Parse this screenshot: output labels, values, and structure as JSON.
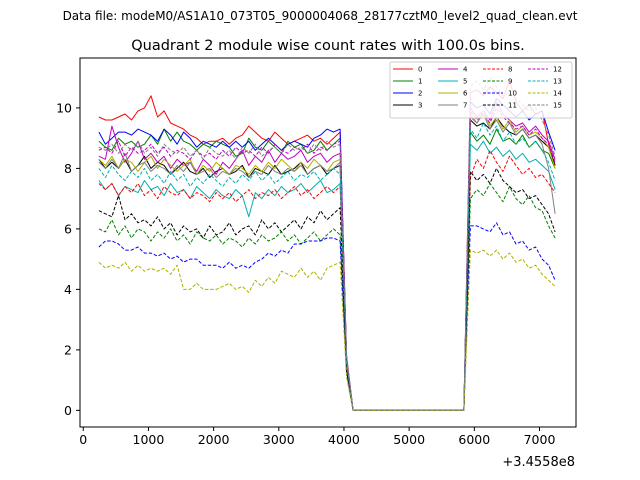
{
  "header": "Data file: modeM0/AS1A10_073T05_9000004068_28177cztM0_level2_quad_clean.evt",
  "chart_data": {
    "type": "line",
    "title": "Quadrant 2 module wise count rates with 100.0s bins.",
    "xlabel": "",
    "ylabel": "",
    "offset_label": "+3.4558e8",
    "xlim": [
      -50,
      7560
    ],
    "ylim": [
      -0.55,
      11.65
    ],
    "xticks": [
      0,
      1000,
      2000,
      3000,
      4000,
      5000,
      6000,
      7000
    ],
    "yticks": [
      0,
      2,
      4,
      6,
      8,
      10
    ],
    "grid": false,
    "legend_position": "top-right",
    "x": [
      240,
      340,
      440,
      540,
      640,
      740,
      840,
      940,
      1040,
      1140,
      1240,
      1340,
      1440,
      1540,
      1640,
      1740,
      1840,
      1940,
      2040,
      2140,
      2240,
      2340,
      2440,
      2540,
      2640,
      2740,
      2840,
      2940,
      3040,
      3140,
      3240,
      3340,
      3440,
      3540,
      3640,
      3740,
      3840,
      3940,
      4040,
      4140,
      4240,
      4340,
      4440,
      4540,
      4640,
      4740,
      4840,
      4940,
      5040,
      5140,
      5240,
      5340,
      5440,
      5540,
      5640,
      5740,
      5840,
      5940,
      6040,
      6140,
      6240,
      6340,
      6440,
      6540,
      6640,
      6740,
      6840,
      6940,
      7040,
      7140,
      7240
    ],
    "gap_values": [
      0,
      0,
      0,
      0,
      0,
      0,
      0,
      0,
      0,
      0,
      0,
      0,
      0,
      0,
      0,
      0,
      0,
      0
    ],
    "series": [
      {
        "name": "0",
        "color": "#ff0000",
        "dash": false,
        "level": 9.3,
        "peak": 10.6,
        "descent": 1.8,
        "pre": [
          9.7,
          9.6,
          9.6,
          9.7,
          9.8,
          9.6,
          9.9,
          10.0,
          10.4,
          9.7,
          9.9,
          9.5,
          9.4,
          9.3,
          9.1,
          9.0,
          8.8,
          8.9,
          8.9,
          9.0,
          8.8,
          9.0,
          9.1,
          9.4,
          9.2,
          9.0,
          8.9,
          9.2,
          9.0,
          8.8,
          8.9,
          9.0,
          9.1,
          8.9,
          9.0,
          8.8,
          9.0,
          9.2
        ],
        "post": [
          10.5,
          10.6,
          10.4,
          10.7,
          10.5,
          10.3,
          10.9,
          10.2,
          9.9,
          10.1,
          9.8,
          9.9,
          8.8,
          8.1
        ]
      },
      {
        "name": "1",
        "color": "#008000",
        "dash": false,
        "level": 8.7,
        "peak": 9.1,
        "descent": 1.6,
        "pre": [
          8.9,
          8.7,
          8.6,
          9.0,
          8.8,
          8.9,
          8.7,
          8.8,
          9.1,
          8.8,
          9.3,
          8.9,
          9.2,
          8.9,
          8.8,
          8.6,
          8.8,
          8.7,
          8.9,
          8.8,
          8.7,
          8.4,
          8.5,
          9.0,
          8.7,
          8.6,
          8.9,
          8.7,
          8.5,
          8.9,
          8.7,
          8.8,
          8.5,
          8.6,
          8.9,
          8.6,
          8.8,
          9.0
        ],
        "post": [
          9.2,
          8.9,
          9.1,
          8.8,
          9.3,
          8.9,
          9.0,
          8.8,
          9.1,
          8.7,
          8.9,
          8.6,
          8.5,
          8.0
        ]
      },
      {
        "name": "2",
        "color": "#0000ff",
        "dash": false,
        "level": 9.0,
        "peak": 10.0,
        "descent": 1.7,
        "pre": [
          9.2,
          8.8,
          9.0,
          9.2,
          9.2,
          9.1,
          9.3,
          9.2,
          9.1,
          8.9,
          9.3,
          9.1,
          8.8,
          9.2,
          9.0,
          8.7,
          8.9,
          8.8,
          8.7,
          8.9,
          8.7,
          8.9,
          8.7,
          8.9,
          8.6,
          8.8,
          9.0,
          8.8,
          8.6,
          8.8,
          8.9,
          8.8,
          8.7,
          9.0,
          9.1,
          9.3,
          9.2,
          9.3
        ],
        "post": [
          10.2,
          10.0,
          10.1,
          9.8,
          10.3,
          10.1,
          9.9,
          9.7,
          9.9,
          9.6,
          9.8,
          9.9,
          9.2,
          8.6
        ]
      },
      {
        "name": "3",
        "color": "#000000",
        "dash": false,
        "level": 8.1,
        "peak": 9.5,
        "descent": 1.6,
        "pre": [
          8.3,
          8.0,
          8.2,
          8.0,
          8.3,
          7.9,
          8.1,
          8.4,
          8.0,
          8.2,
          8.1,
          7.8,
          8.0,
          8.2,
          7.9,
          7.8,
          8.0,
          7.7,
          7.9,
          8.0,
          7.8,
          7.9,
          8.1,
          7.7,
          8.0,
          7.9,
          7.8,
          8.1,
          7.8,
          7.9,
          8.0,
          8.2,
          7.8,
          8.0,
          8.1,
          7.8,
          8.0,
          8.1
        ],
        "post": [
          9.6,
          9.4,
          9.5,
          9.3,
          9.7,
          9.4,
          9.2,
          9.1,
          9.3,
          9.0,
          9.1,
          8.9,
          8.7,
          8.1
        ]
      },
      {
        "name": "4",
        "color": "#c000c0",
        "dash": false,
        "level": 8.2,
        "peak": 9.8,
        "descent": 1.7,
        "pre": [
          8.4,
          8.3,
          9.4,
          8.7,
          8.2,
          8.5,
          8.9,
          8.3,
          8.5,
          8.2,
          8.4,
          8.0,
          8.3,
          8.1,
          8.2,
          7.9,
          8.3,
          8.1,
          7.8,
          8.2,
          8.0,
          8.3,
          8.6,
          8.1,
          8.4,
          8.2,
          8.6,
          8.2,
          8.5,
          8.3,
          8.4,
          8.6,
          8.2,
          8.4,
          8.5,
          8.2,
          8.4,
          8.5
        ],
        "post": [
          10.0,
          9.7,
          9.9,
          9.6,
          10.2,
          9.8,
          9.6,
          9.4,
          9.5,
          9.2,
          9.4,
          9.1,
          8.9,
          8.3
        ]
      },
      {
        "name": "5",
        "color": "#00b0b0",
        "dash": false,
        "level": 7.4,
        "peak": 8.7,
        "descent": 1.5,
        "pre": [
          7.6,
          7.3,
          7.5,
          7.1,
          7.4,
          7.3,
          7.2,
          7.6,
          7.3,
          7.4,
          7.1,
          7.5,
          7.2,
          7.3,
          7.0,
          7.4,
          7.2,
          7.0,
          7.3,
          7.1,
          7.0,
          7.3,
          7.1,
          6.4,
          7.2,
          7.0,
          7.3,
          7.1,
          7.4,
          7.2,
          7.3,
          7.5,
          7.2,
          7.4,
          7.6,
          7.2,
          7.3,
          7.5
        ],
        "post": [
          8.8,
          8.6,
          8.9,
          8.5,
          8.7,
          8.4,
          8.6,
          8.3,
          8.5,
          8.2,
          8.3,
          8.1,
          7.9,
          7.3
        ]
      },
      {
        "name": "6",
        "color": "#b0b000",
        "dash": false,
        "level": 8.2,
        "peak": 9.7,
        "descent": 1.7,
        "pre": [
          8.3,
          8.1,
          8.4,
          8.0,
          8.3,
          8.2,
          7.9,
          8.2,
          8.4,
          8.0,
          8.3,
          8.1,
          7.9,
          8.1,
          8.3,
          7.8,
          8.1,
          7.9,
          8.2,
          8.0,
          7.8,
          8.1,
          8.0,
          7.8,
          8.1,
          7.9,
          8.2,
          8.0,
          8.3,
          8.1,
          7.9,
          8.2,
          8.0,
          8.3,
          8.1,
          7.9,
          8.2,
          8.3
        ],
        "post": [
          9.8,
          9.5,
          9.9,
          9.4,
          9.7,
          9.3,
          9.6,
          9.2,
          9.4,
          9.1,
          9.2,
          9.0,
          8.7,
          8.0
        ]
      },
      {
        "name": "7",
        "color": "#808080",
        "dash": false,
        "level": 8.0,
        "peak": 9.6,
        "descent": 1.7,
        "pre": [
          8.2,
          8.0,
          8.3,
          8.0,
          8.5,
          7.9,
          8.1,
          8.2,
          7.9,
          8.1,
          8.0,
          7.8,
          8.1,
          7.9,
          8.2,
          7.8,
          7.9,
          8.0,
          7.7,
          7.9,
          7.8,
          8.0,
          7.9,
          7.7,
          7.9,
          7.8,
          8.1,
          7.9,
          7.8,
          8.0,
          7.9,
          8.1,
          7.8,
          8.0,
          8.1,
          7.9,
          8.0,
          8.2
        ],
        "post": [
          9.7,
          9.5,
          9.8,
          9.3,
          9.6,
          9.2,
          9.5,
          9.1,
          9.3,
          9.0,
          9.1,
          8.8,
          8.0,
          6.5
        ]
      },
      {
        "name": "8",
        "color": "#ff0000",
        "dash": true,
        "level": 7.3,
        "peak": 8.6,
        "descent": 1.5,
        "pre": [
          7.5,
          7.3,
          7.5,
          7.1,
          7.4,
          7.2,
          7.5,
          7.1,
          7.3,
          7.0,
          7.4,
          7.2,
          7.1,
          7.3,
          7.0,
          7.2,
          7.1,
          6.9,
          7.2,
          7.0,
          7.2,
          6.9,
          7.1,
          7.3,
          7.0,
          7.2,
          7.1,
          7.3,
          7.0,
          7.2,
          7.4,
          7.1,
          7.3,
          7.0,
          7.2,
          7.4,
          7.2,
          7.4
        ],
        "post": [
          7.7,
          8.3,
          8.0,
          8.6,
          8.2,
          7.9,
          8.4,
          8.1,
          7.8,
          8.0,
          7.7,
          7.8,
          7.5,
          7.2
        ]
      },
      {
        "name": "9",
        "color": "#008000",
        "dash": true,
        "level": 5.9,
        "peak": 7.4,
        "descent": 1.3,
        "pre": [
          6.0,
          5.9,
          6.3,
          5.8,
          6.1,
          5.7,
          6.0,
          5.9,
          5.6,
          5.9,
          5.7,
          6.0,
          5.6,
          5.8,
          5.5,
          5.9,
          5.7,
          5.6,
          5.8,
          5.5,
          5.7,
          5.6,
          5.4,
          5.7,
          5.5,
          5.8,
          5.6,
          5.7,
          5.9,
          5.6,
          5.8,
          5.5,
          5.7,
          5.9,
          5.6,
          5.8,
          6.0,
          5.8
        ],
        "post": [
          7.0,
          7.3,
          7.1,
          7.5,
          7.2,
          6.9,
          7.4,
          7.0,
          6.8,
          7.1,
          6.7,
          6.6,
          6.1,
          5.7
        ]
      },
      {
        "name": "10",
        "color": "#0000ff",
        "dash": true,
        "level": 5.4,
        "peak": 6.0,
        "descent": 1.2,
        "pre": [
          5.4,
          5.6,
          5.6,
          5.5,
          5.3,
          5.3,
          5.4,
          5.2,
          5.2,
          5.1,
          5.2,
          5.0,
          5.1,
          4.9,
          5.0,
          5.0,
          4.8,
          4.8,
          4.8,
          4.7,
          4.9,
          4.7,
          4.8,
          4.7,
          4.9,
          5.0,
          5.2,
          5.1,
          5.3,
          5.2,
          5.5,
          5.5,
          5.6,
          5.6,
          5.6,
          5.7,
          5.7,
          5.6
        ],
        "post": [
          6.1,
          6.1,
          6.0,
          5.9,
          6.2,
          5.8,
          5.9,
          5.5,
          5.6,
          5.3,
          5.4,
          5.0,
          4.8,
          4.3
        ]
      },
      {
        "name": "11",
        "color": "#000000",
        "dash": true,
        "level": 6.2,
        "peak": 7.8,
        "descent": 1.3,
        "pre": [
          6.6,
          6.5,
          6.4,
          7.1,
          6.3,
          6.5,
          6.2,
          6.3,
          6.1,
          6.4,
          6.0,
          6.2,
          5.8,
          6.1,
          5.9,
          6.0,
          5.7,
          6.1,
          5.8,
          5.9,
          6.2,
          5.8,
          6.0,
          6.1,
          5.8,
          6.3,
          6.0,
          6.2,
          5.9,
          6.1,
          6.3,
          6.0,
          6.4,
          6.2,
          6.6,
          6.3,
          6.5,
          6.7
        ],
        "post": [
          7.9,
          7.6,
          7.8,
          7.5,
          8.0,
          7.6,
          7.4,
          7.2,
          7.3,
          7.0,
          7.1,
          6.8,
          6.5,
          5.9
        ]
      },
      {
        "name": "12",
        "color": "#c000c0",
        "dash": true,
        "level": 8.5,
        "peak": 9.8,
        "descent": 1.7,
        "pre": [
          8.6,
          8.7,
          8.5,
          8.9,
          8.4,
          8.7,
          8.5,
          8.6,
          8.8,
          8.5,
          8.7,
          8.4,
          8.6,
          8.5,
          8.3,
          8.6,
          8.4,
          8.5,
          8.3,
          8.6,
          8.4,
          8.7,
          8.5,
          8.6,
          8.4,
          8.7,
          8.5,
          8.8,
          8.6,
          8.5,
          8.7,
          8.6,
          8.8,
          8.5,
          8.7,
          8.6,
          8.8,
          8.9
        ],
        "post": [
          9.9,
          9.6,
          9.8,
          9.5,
          10.0,
          9.7,
          9.5,
          9.3,
          9.4,
          9.1,
          9.3,
          9.0,
          8.8,
          8.2
        ]
      },
      {
        "name": "13",
        "color": "#00b0b0",
        "dash": true,
        "level": 7.8,
        "peak": 9.4,
        "descent": 1.6,
        "pre": [
          8.0,
          7.7,
          8.1,
          7.8,
          7.6,
          7.9,
          7.7,
          8.0,
          7.6,
          7.8,
          7.5,
          7.9,
          7.6,
          7.8,
          7.4,
          7.7,
          7.5,
          7.8,
          7.6,
          7.4,
          7.7,
          7.5,
          7.8,
          7.6,
          7.9,
          7.6,
          7.8,
          7.5,
          7.7,
          7.9,
          7.6,
          7.8,
          7.7,
          7.9,
          7.6,
          7.8,
          8.0,
          7.8
        ],
        "post": [
          9.3,
          9.0,
          9.5,
          9.1,
          9.4,
          8.9,
          9.2,
          8.8,
          9.0,
          8.7,
          8.9,
          8.6,
          8.2,
          7.6
        ]
      },
      {
        "name": "14",
        "color": "#b0b000",
        "dash": true,
        "level": 4.4,
        "peak": 5.3,
        "descent": 1.1,
        "pre": [
          4.9,
          4.7,
          4.8,
          4.7,
          4.9,
          4.6,
          4.8,
          4.6,
          4.7,
          4.6,
          4.7,
          4.5,
          4.8,
          4.0,
          4.0,
          4.2,
          4.0,
          4.0,
          4.0,
          4.1,
          4.2,
          4.0,
          4.1,
          3.9,
          4.3,
          4.1,
          4.4,
          4.2,
          4.6,
          4.5,
          4.4,
          4.7,
          4.4,
          4.6,
          4.3,
          4.7,
          4.8,
          4.9
        ],
        "post": [
          5.3,
          5.2,
          5.3,
          5.1,
          5.3,
          5.0,
          5.2,
          4.9,
          5.0,
          4.7,
          4.8,
          4.5,
          4.3,
          4.1
        ]
      },
      {
        "name": "15",
        "color": "#808080",
        "dash": true,
        "level": 8.6,
        "peak": 11.0,
        "descent": 1.8,
        "pre": [
          8.7,
          8.6,
          8.8,
          8.5,
          8.8,
          8.6,
          8.9,
          8.5,
          8.7,
          8.4,
          8.8,
          8.6,
          8.5,
          8.7,
          8.4,
          8.6,
          8.3,
          8.7,
          8.5,
          8.4,
          8.6,
          8.3,
          8.7,
          8.5,
          8.8,
          8.4,
          8.6,
          8.7,
          8.5,
          8.8,
          8.6,
          8.7,
          8.5,
          8.8,
          8.6,
          8.9,
          8.7,
          8.8
        ],
        "post": [
          10.7,
          10.9,
          10.6,
          11.0,
          10.7,
          10.4,
          10.5,
          10.3,
          10.1,
          9.9,
          10.0,
          9.6,
          9.1,
          8.4
        ]
      }
    ]
  }
}
